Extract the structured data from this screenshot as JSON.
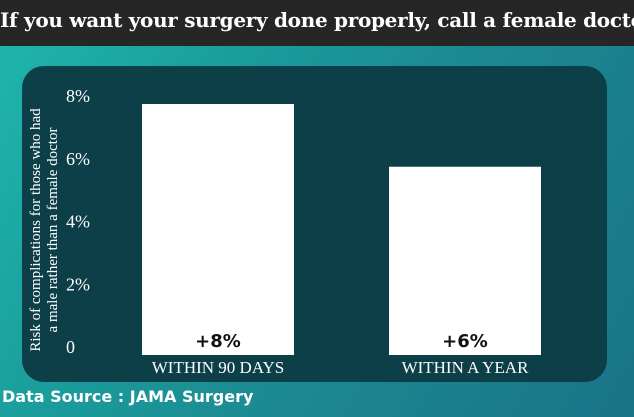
{
  "header": {
    "title": "If you want your surgery done properly, call a female doctor"
  },
  "footer": {
    "source": "Data Source : JAMA Surgery"
  },
  "colors": {
    "header_bg": "#262626",
    "panel_bg": "#0d3f49",
    "bar": "#ffffff",
    "text": "#ffffff",
    "data_label": "#111111"
  },
  "chart_data": {
    "type": "bar",
    "title": "If you want your surgery done properly, call a female doctor",
    "categories": [
      "WITHIN 90 DAYS",
      "WITHIN A YEAR"
    ],
    "values": [
      8,
      6
    ],
    "data_labels": [
      "+8%",
      "+6%"
    ],
    "ylabel_lines": [
      "Risk of complications for those who had",
      "a male rather than a female doctor"
    ],
    "yticks": [
      0,
      2,
      4,
      6,
      8
    ],
    "ytick_labels": [
      "0",
      "2%",
      "4%",
      "6%",
      "8%"
    ],
    "ylim": [
      0,
      8
    ],
    "grid": false,
    "legend": "none"
  }
}
